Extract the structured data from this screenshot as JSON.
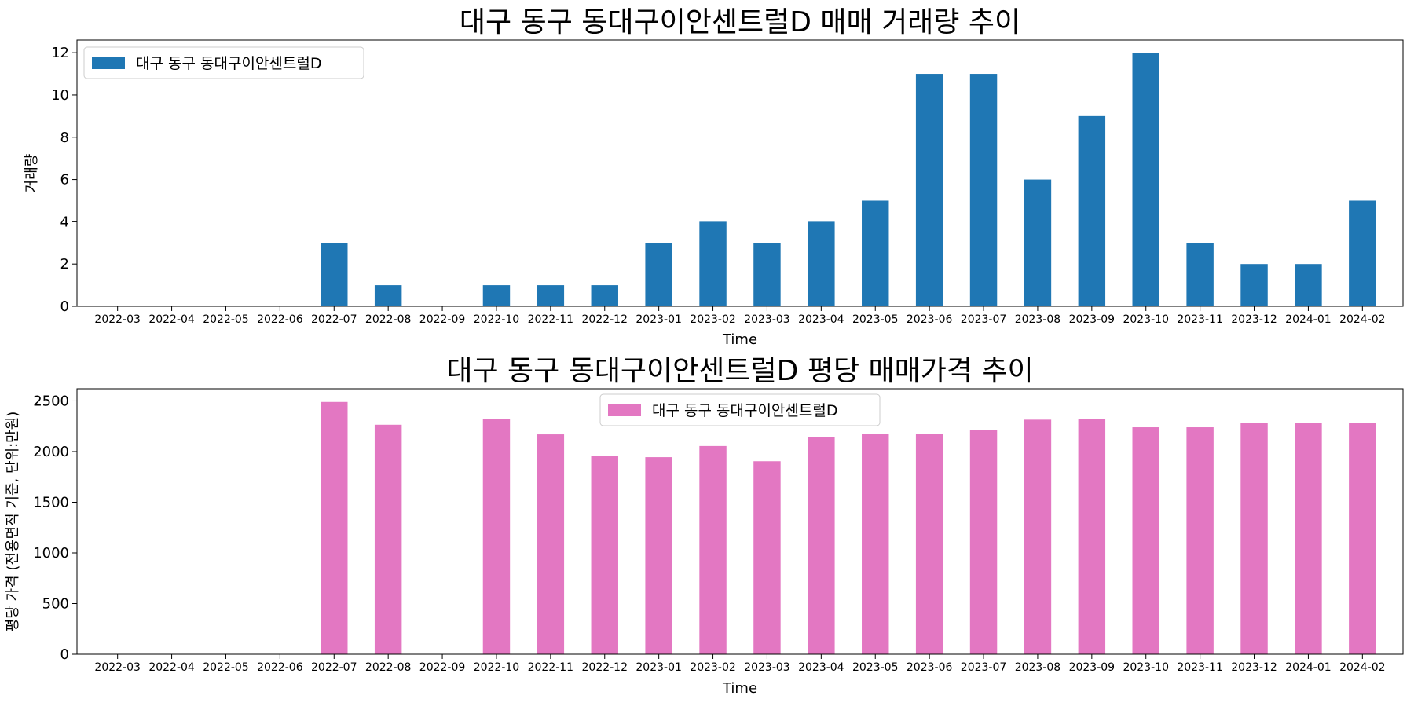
{
  "chart_data": [
    {
      "type": "bar",
      "title": "대구 동구 동대구이안센트럴D 매매 거래량 추이",
      "xlabel": "Time",
      "ylabel": "거래량",
      "categories": [
        "2022-03",
        "2022-04",
        "2022-05",
        "2022-06",
        "2022-07",
        "2022-08",
        "2022-09",
        "2022-10",
        "2022-11",
        "2022-12",
        "2023-01",
        "2023-02",
        "2023-03",
        "2023-04",
        "2023-05",
        "2023-06",
        "2023-07",
        "2023-08",
        "2023-09",
        "2023-10",
        "2023-11",
        "2023-12",
        "2024-01",
        "2024-02"
      ],
      "series": [
        {
          "name": "대구 동구 동대구이안센트럴D",
          "color": "#1f77b4",
          "values": [
            0,
            0,
            0,
            0,
            3,
            1,
            0,
            1,
            1,
            1,
            3,
            4,
            3,
            4,
            5,
            11,
            11,
            6,
            9,
            12,
            3,
            2,
            2,
            5
          ]
        }
      ],
      "ylim": [
        0,
        12.6
      ],
      "yticks": [
        0,
        2,
        4,
        6,
        8,
        10,
        12
      ],
      "legend": "top-left",
      "grid": false
    },
    {
      "type": "bar",
      "title": "대구 동구 동대구이안센트럴D 평당 매매가격 추이",
      "xlabel": "Time",
      "ylabel": "평당 가격 (전용면적 기준, 단위:만원)",
      "categories": [
        "2022-03",
        "2022-04",
        "2022-05",
        "2022-06",
        "2022-07",
        "2022-08",
        "2022-09",
        "2022-10",
        "2022-11",
        "2022-12",
        "2023-01",
        "2023-02",
        "2023-03",
        "2023-04",
        "2023-05",
        "2023-06",
        "2023-07",
        "2023-08",
        "2023-09",
        "2023-10",
        "2023-11",
        "2023-12",
        "2024-01",
        "2024-02"
      ],
      "series": [
        {
          "name": "대구 동구 동대구이안센트럴D",
          "color": "#e377c2",
          "values": [
            0,
            0,
            0,
            0,
            2490,
            2265,
            0,
            2320,
            2170,
            1955,
            1945,
            2055,
            1905,
            2145,
            2175,
            2175,
            2215,
            2315,
            2320,
            2240,
            2240,
            2285,
            2280,
            2285
          ]
        }
      ],
      "ylim": [
        0,
        2620
      ],
      "yticks": [
        0,
        500,
        1000,
        1500,
        2000,
        2500
      ],
      "legend": "top-center",
      "grid": false
    }
  ]
}
